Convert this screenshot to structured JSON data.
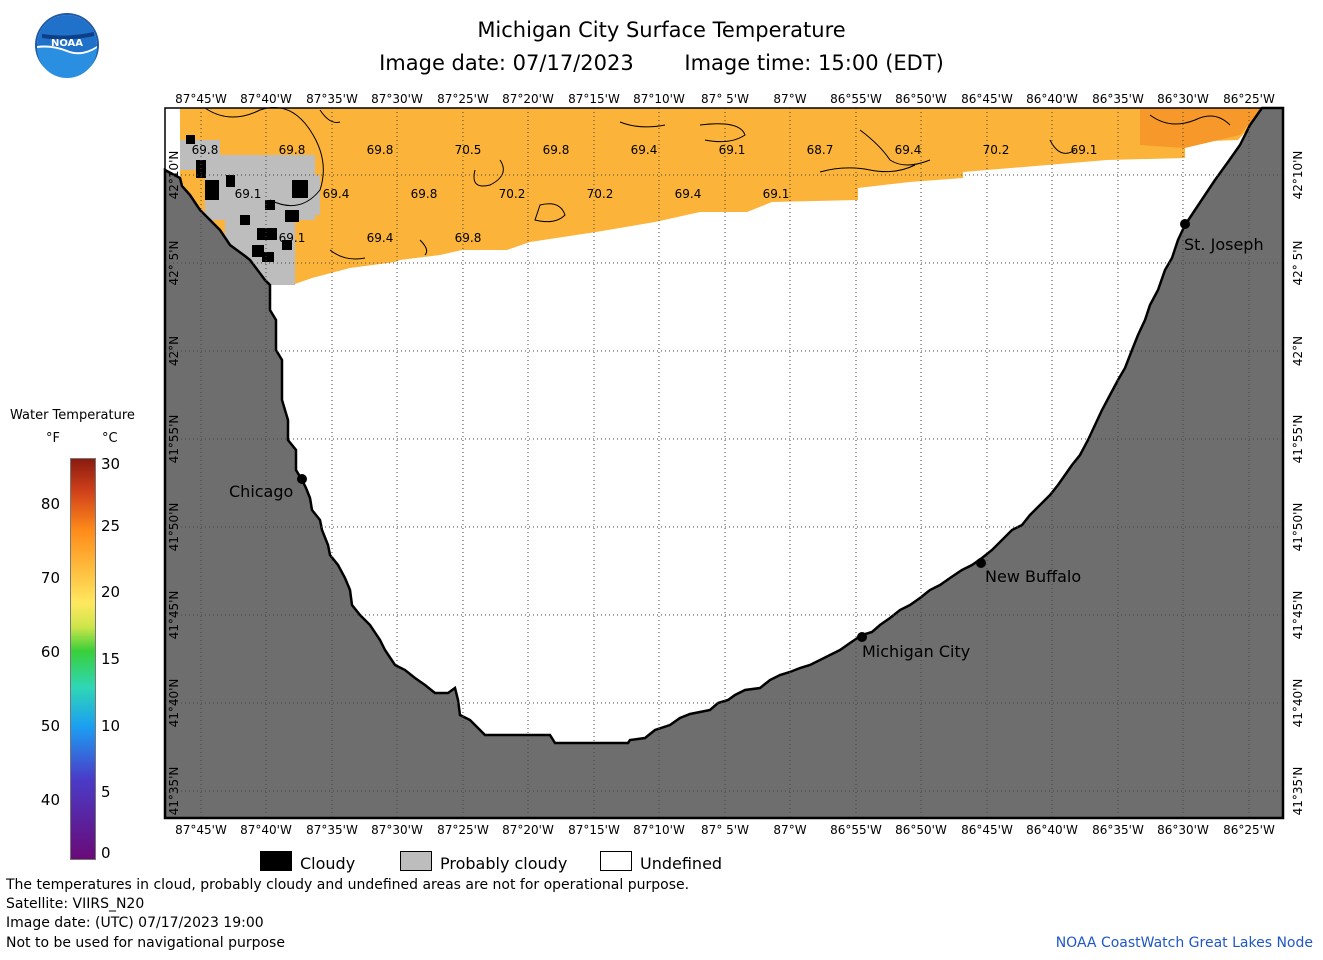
{
  "header": {
    "title": "Michigan City Surface Temperature",
    "image_date": "Image date: 07/17/2023",
    "image_time": "Image time: 15:00 (EDT)"
  },
  "logo": {
    "text": "NOAA",
    "icon": "noaa-logo-icon"
  },
  "legend": {
    "title": "Water Temperature",
    "unit_f": "°F",
    "unit_c": "°C",
    "f_ticks": [
      "80",
      "70",
      "60",
      "50",
      "40"
    ],
    "c_ticks": [
      "30",
      "25",
      "20",
      "15",
      "10",
      "5",
      "0"
    ]
  },
  "map": {
    "top_lon_labels": [
      "87°45'W",
      "87°40'W",
      "87°35'W",
      "87°30'W",
      "87°25'W",
      "87°20'W",
      "87°15'W",
      "87°10'W",
      "87° 5'W",
      "87°W",
      "86°55'W",
      "86°50'W",
      "86°45'W",
      "86°40'W",
      "86°35'W",
      "86°30'W",
      "86°25'W"
    ],
    "bottom_lon_labels": [
      "87°45'W",
      "87°40'W",
      "87°35'W",
      "87°30'W",
      "87°25'W",
      "87°20'W",
      "87°15'W",
      "87°10'W",
      "87° 5'W",
      "87°W",
      "86°55'W",
      "86°50'W",
      "86°45'W",
      "86°40'W",
      "86°35'W",
      "86°30'W",
      "86°25'W"
    ],
    "lat_labels": [
      "42°10'N",
      "42° 5'N",
      "42°N",
      "41°55'N",
      "41°50'N",
      "41°45'N",
      "41°40'N",
      "41°35'N"
    ],
    "temperature_labels": [
      "69.8",
      "69.8",
      "69.8",
      "70.5",
      "69.8",
      "69.4",
      "69.1",
      "68.7",
      "69.4",
      "70.2",
      "69.1",
      "69.1",
      "69.4",
      "69.8",
      "70.2",
      "70.2",
      "69.4",
      "69.1",
      "69.1",
      "69.4",
      "69.8"
    ],
    "cities": [
      "St. Joseph",
      "Chicago",
      "New Buffalo",
      "Michigan City"
    ],
    "colors": {
      "water_warm": "#fbb33a",
      "water_hot": "#f9a32a",
      "land": "#6e6e6e",
      "cloud": "#000000",
      "probably_cloudy": "#bdbdbd"
    }
  },
  "key": {
    "cloudy": "Cloudy",
    "probably_cloudy": "Probably cloudy",
    "undefined": "Undefined"
  },
  "footer": {
    "note": "The temperatures in cloud, probably cloudy and undefined areas are not for operational purpose.",
    "satellite": "Satellite: VIIRS_N20",
    "image_date_utc": "Image date: (UTC) 07/17/2023  19:00",
    "nav_warning": "Not to be used for navigational purpose",
    "credit": "NOAA CoastWatch Great Lakes Node"
  }
}
